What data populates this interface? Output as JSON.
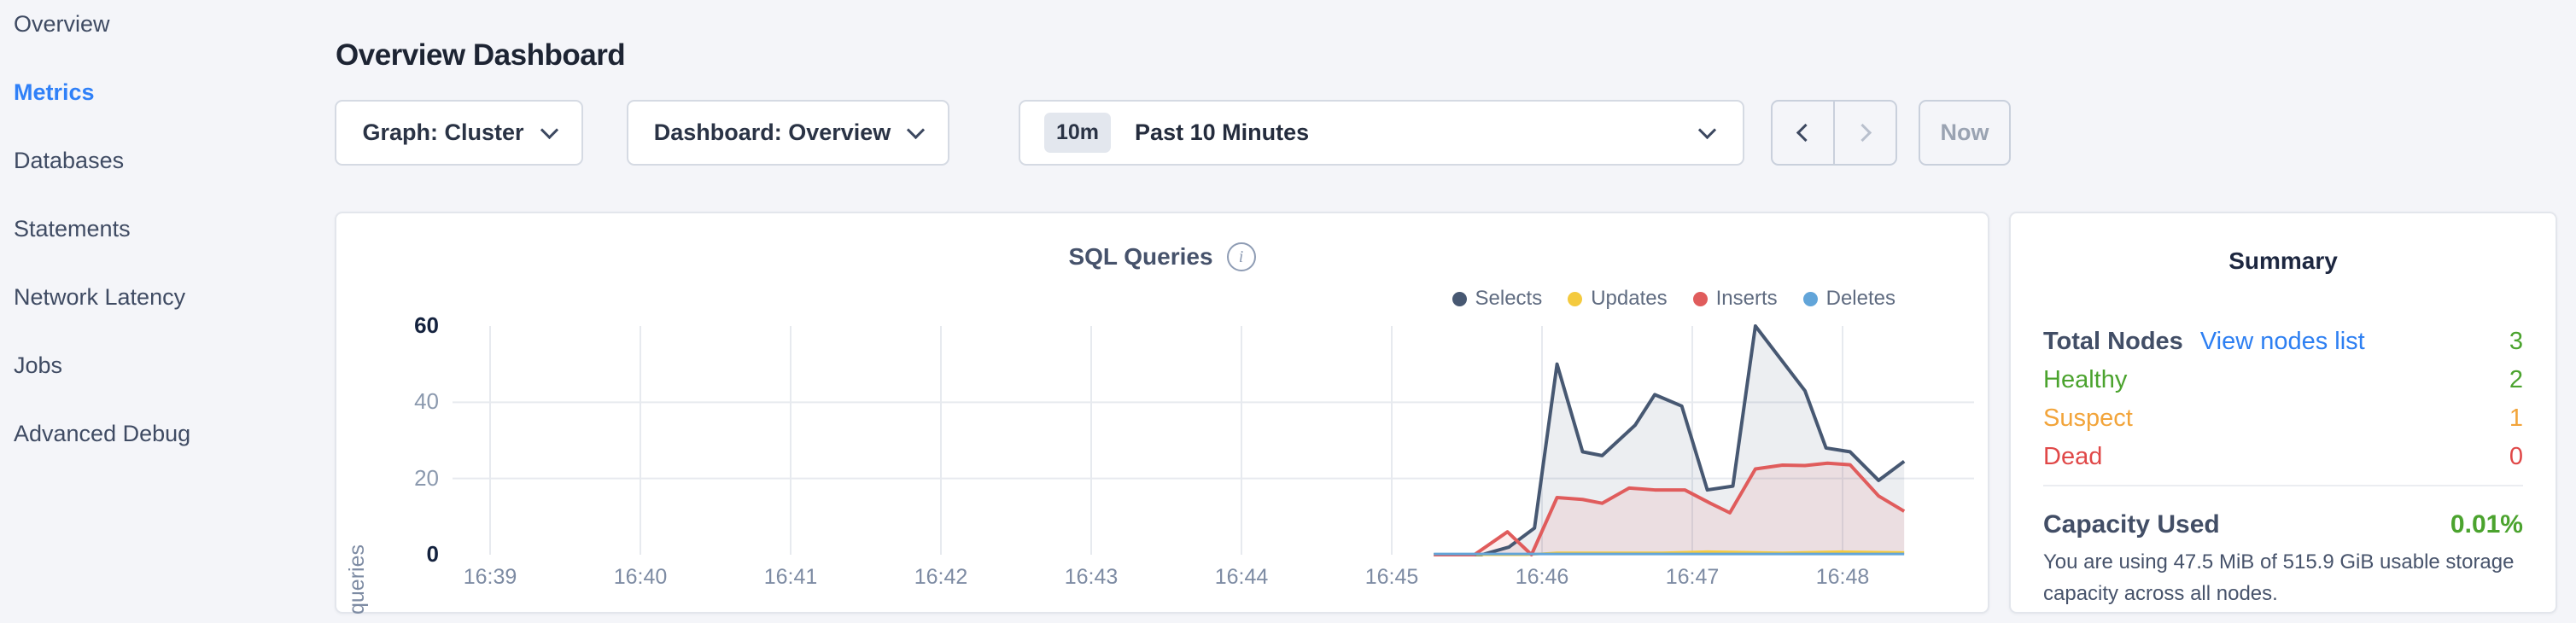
{
  "sidebar": {
    "items": [
      {
        "label": "Overview",
        "active": false
      },
      {
        "label": "Metrics",
        "active": true
      },
      {
        "label": "Databases",
        "active": false
      },
      {
        "label": "Statements",
        "active": false
      },
      {
        "label": "Network Latency",
        "active": false
      },
      {
        "label": "Jobs",
        "active": false
      },
      {
        "label": "Advanced Debug",
        "active": false
      }
    ]
  },
  "header": {
    "title": "Overview Dashboard"
  },
  "toolbar": {
    "graph_dropdown": "Graph: Cluster",
    "dashboard_dropdown": "Dashboard: Overview",
    "time_badge": "10m",
    "time_label": "Past 10 Minutes",
    "now_label": "Now"
  },
  "chart_data": {
    "type": "area",
    "title": "SQL Queries",
    "ylabel": "queries",
    "ylim": [
      0,
      60
    ],
    "y_ticks": [
      0,
      20,
      40,
      60
    ],
    "y_gridlines": [
      20,
      40
    ],
    "x_ticks": [
      "16:39",
      "16:40",
      "16:41",
      "16:42",
      "16:43",
      "16:44",
      "16:45",
      "16:46",
      "16:47",
      "16:48"
    ],
    "legend_position": "top-right",
    "grid": true,
    "series": [
      {
        "name": "Selects",
        "color": "#475872",
        "fill": "rgba(71,88,114,0.10)",
        "points": [
          [
            6.28,
            0
          ],
          [
            6.6,
            0
          ],
          [
            6.78,
            2
          ],
          [
            6.95,
            7
          ],
          [
            7.1,
            50
          ],
          [
            7.27,
            27
          ],
          [
            7.4,
            26
          ],
          [
            7.62,
            34
          ],
          [
            7.75,
            42
          ],
          [
            7.93,
            39
          ],
          [
            8.1,
            17
          ],
          [
            8.27,
            18
          ],
          [
            8.42,
            60
          ],
          [
            8.75,
            43
          ],
          [
            8.89,
            28
          ],
          [
            9.05,
            27
          ],
          [
            9.24,
            19.5
          ],
          [
            9.41,
            24.5
          ]
        ]
      },
      {
        "name": "Updates",
        "color": "#f4ca3e",
        "fill": "none",
        "points": [
          [
            6.28,
            0
          ],
          [
            6.9,
            0
          ],
          [
            7.1,
            0.5
          ],
          [
            7.8,
            0.5
          ],
          [
            8.1,
            0.8
          ],
          [
            8.6,
            0.5
          ],
          [
            9.0,
            0.8
          ],
          [
            9.41,
            0.6
          ]
        ]
      },
      {
        "name": "Inserts",
        "color": "#e05c5c",
        "fill": "rgba(224,92,92,0.10)",
        "points": [
          [
            6.28,
            0
          ],
          [
            6.55,
            0
          ],
          [
            6.77,
            6
          ],
          [
            6.93,
            0
          ],
          [
            7.1,
            15
          ],
          [
            7.27,
            14.5
          ],
          [
            7.4,
            13.5
          ],
          [
            7.58,
            17.5
          ],
          [
            7.75,
            17
          ],
          [
            7.95,
            17
          ],
          [
            8.12,
            13.5
          ],
          [
            8.25,
            11
          ],
          [
            8.42,
            22.5
          ],
          [
            8.6,
            23.5
          ],
          [
            8.75,
            23.4
          ],
          [
            8.9,
            24
          ],
          [
            9.05,
            23.6
          ],
          [
            9.24,
            15.4
          ],
          [
            9.41,
            11.4
          ]
        ]
      },
      {
        "name": "Deletes",
        "color": "#62a5d9",
        "fill": "none",
        "points": [
          [
            6.28,
            0.2
          ],
          [
            9.41,
            0.2
          ]
        ]
      }
    ]
  },
  "summary": {
    "title": "Summary",
    "total_nodes_label": "Total Nodes",
    "view_nodes_link": "View nodes list",
    "total_nodes_value": "3",
    "total_nodes_color": "#4ba32e",
    "rows": [
      {
        "label": "Healthy",
        "value": "2",
        "color": "#4ba32e"
      },
      {
        "label": "Suspect",
        "value": "1",
        "color": "#f2a43a"
      },
      {
        "label": "Dead",
        "value": "0",
        "color": "#e04848"
      }
    ],
    "capacity_label": "Capacity Used",
    "capacity_value": "0.01%",
    "capacity_color": "#4ba32e",
    "capacity_caption": "You are using 47.5 MiB of 515.9 GiB usable storage capacity across all nodes."
  }
}
